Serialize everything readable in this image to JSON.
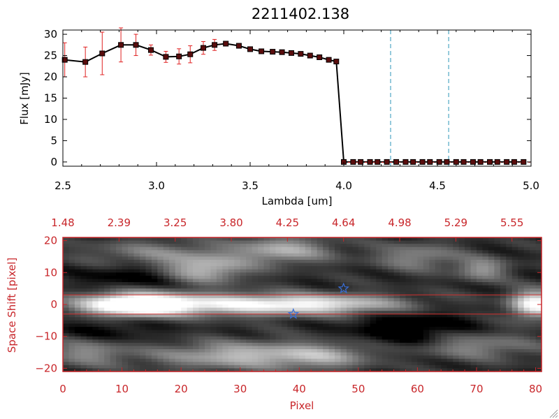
{
  "chart_data": [
    {
      "type": "line",
      "title": "2211402.138",
      "xlabel": "Lambda [um]",
      "ylabel": "Flux [mJy]",
      "xlim": [
        2.5,
        5.0
      ],
      "ylim": [
        -1,
        31
      ],
      "xticks": [
        2.5,
        3.0,
        3.5,
        4.0,
        4.5,
        5.0
      ],
      "xtick_labels": [
        "2.5",
        "3.0",
        "3.5",
        "4.0",
        "4.5",
        "5.0"
      ],
      "yticks": [
        0,
        5,
        10,
        15,
        20,
        25,
        30
      ],
      "ytick_labels": [
        "0",
        "5",
        "10",
        "15",
        "20",
        "25",
        "30"
      ],
      "vlines": [
        4.25,
        4.56
      ],
      "series": [
        {
          "name": "flux",
          "x": [
            2.51,
            2.62,
            2.71,
            2.81,
            2.89,
            2.97,
            3.05,
            3.12,
            3.18,
            3.25,
            3.31,
            3.37,
            3.44,
            3.5,
            3.56,
            3.62,
            3.67,
            3.72,
            3.77,
            3.82,
            3.87,
            3.92,
            3.96,
            4.0,
            4.05,
            4.09,
            4.14,
            4.18,
            4.23,
            4.28,
            4.33,
            4.37,
            4.42,
            4.46,
            4.51,
            4.55,
            4.6,
            4.64,
            4.69,
            4.73,
            4.78,
            4.82,
            4.87,
            4.91,
            4.96
          ],
          "y": [
            24.0,
            23.5,
            25.5,
            27.5,
            27.5,
            26.3,
            24.7,
            24.8,
            25.3,
            26.8,
            27.5,
            27.8,
            27.3,
            26.5,
            26.0,
            25.9,
            25.8,
            25.6,
            25.4,
            25.0,
            24.6,
            24.0,
            23.6,
            0,
            0,
            0,
            0,
            0,
            0,
            0,
            0,
            0,
            0,
            0,
            0,
            0,
            0,
            0,
            0,
            0,
            0,
            0,
            0,
            0,
            0
          ],
          "err": [
            4.0,
            3.5,
            5.0,
            4.0,
            2.5,
            1.2,
            1.3,
            1.8,
            2.0,
            1.5,
            1.3,
            0.5,
            0.3,
            0.2,
            0.2,
            0.2,
            0.2,
            0.2,
            0.2,
            0.2,
            0.2,
            0.2,
            0.2,
            0,
            0,
            0,
            0,
            0,
            0,
            0,
            0,
            0,
            0,
            0,
            0,
            0,
            0,
            0,
            0,
            0,
            0,
            0,
            0,
            0,
            0
          ]
        }
      ]
    },
    {
      "type": "heatmap",
      "xlabel": "Pixel",
      "ylabel": "Space Shift [pixel]",
      "xlim": [
        0,
        81
      ],
      "ylim": [
        -21,
        21
      ],
      "xticks": [
        0,
        10,
        20,
        30,
        40,
        50,
        60,
        70,
        80
      ],
      "xtick_labels": [
        "0",
        "10",
        "20",
        "30",
        "40",
        "50",
        "60",
        "70",
        "80"
      ],
      "yticks": [
        -20,
        -10,
        0,
        10,
        20
      ],
      "ytick_labels": [
        "−20",
        "−10",
        "0",
        "10",
        "20"
      ],
      "top_axis_ticks": [
        0,
        9.5,
        19,
        28.5,
        38,
        47.5,
        57,
        66.5,
        76
      ],
      "top_axis_labels": [
        "1.48",
        "2.39",
        "3.25",
        "3.80",
        "4.25",
        "4.64",
        "4.98",
        "5.29",
        "5.55"
      ],
      "hlines": [
        3,
        -3
      ],
      "markers": [
        {
          "x": 47.5,
          "y": 5,
          "symbol": "star"
        },
        {
          "x": 39,
          "y": -3,
          "symbol": "star"
        }
      ],
      "blobs": [
        {
          "x": 12,
          "y": 0,
          "sx": 6,
          "sy": 2.6,
          "amp": 1.0
        },
        {
          "x": 28,
          "y": 0,
          "sx": 14,
          "sy": 2.4,
          "amp": 0.7
        },
        {
          "x": 46,
          "y": 0,
          "sx": 10,
          "sy": 2.2,
          "amp": 0.45
        },
        {
          "x": 80,
          "y": 0,
          "sx": 3,
          "sy": 3,
          "amp": 0.9
        },
        {
          "x": 24,
          "y": 11,
          "sx": 5,
          "sy": 3,
          "amp": 0.55
        },
        {
          "x": 37,
          "y": 17,
          "sx": 6,
          "sy": 3,
          "amp": 0.5
        },
        {
          "x": 60,
          "y": 15,
          "sx": 5,
          "sy": 3,
          "amp": 0.35
        },
        {
          "x": 71,
          "y": 11,
          "sx": 3,
          "sy": 2.5,
          "amp": 0.4
        },
        {
          "x": 4,
          "y": -15,
          "sx": 5,
          "sy": 3,
          "amp": 0.35
        },
        {
          "x": 30,
          "y": -16,
          "sx": 10,
          "sy": 3,
          "amp": 0.55
        },
        {
          "x": 45,
          "y": -16,
          "sx": 6,
          "sy": 3,
          "amp": 0.35
        },
        {
          "x": 68,
          "y": -13,
          "sx": 8,
          "sy": 3,
          "amp": 0.4
        },
        {
          "x": 15,
          "y": 16,
          "sx": 8,
          "sy": 3,
          "amp": 0.3
        }
      ],
      "darkspots": [
        {
          "x": 59,
          "y": -9,
          "sx": 7,
          "sy": 5,
          "amp": 0.3
        },
        {
          "x": 12,
          "y": 9,
          "sx": 6,
          "sy": 3,
          "amp": 0.2
        },
        {
          "x": 8,
          "y": -8,
          "sx": 6,
          "sy": 3,
          "amp": 0.15
        }
      ]
    }
  ],
  "colors": {
    "axis_top": "#000000",
    "axis_bottom": "#c8262a",
    "marker_fill": "#5a0d0d",
    "errorbar": "#e02020",
    "vline": "#2b95b8",
    "star": "#3a6fd8",
    "hline": "#d0302f"
  }
}
